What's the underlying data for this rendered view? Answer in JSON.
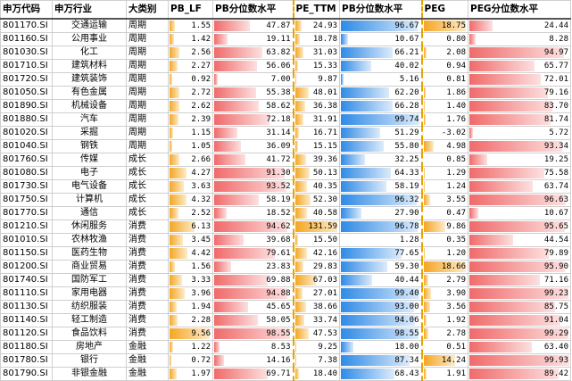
{
  "headers": [
    "申万代码",
    "申万行业",
    "大类别",
    "PB_LF",
    "PB分位数水平",
    "PE_TTM",
    "PB分位数水平",
    "PEG",
    "PEG分位数水平"
  ],
  "colors": {
    "orange": "#f5a623",
    "red": "#f06a6a",
    "blue": "#2f8ae6",
    "red_light": "#fde0e0",
    "blue_light": "#dcebfb",
    "orange_light": "#fdebc8"
  },
  "rows": [
    {
      "code": "801170.SI",
      "industry": "交通运输",
      "category": "周期",
      "pb": "1.55",
      "pb_pct": "47.87",
      "pe": "24.93",
      "pe_pct": "96.67",
      "peg": "18.75",
      "peg_pct": "24.44"
    },
    {
      "code": "801160.SI",
      "industry": "公用事业",
      "category": "周期",
      "pb": "1.42",
      "pb_pct": "19.11",
      "pe": "18.78",
      "pe_pct": "10.67",
      "peg": "0.80",
      "peg_pct": "8.28"
    },
    {
      "code": "801030.SI",
      "industry": "化工",
      "category": "周期",
      "pb": "2.56",
      "pb_pct": "63.82",
      "pe": "31.03",
      "pe_pct": "66.21",
      "peg": "2.08",
      "peg_pct": "94.97"
    },
    {
      "code": "801710.SI",
      "industry": "建筑材料",
      "category": "周期",
      "pb": "2.27",
      "pb_pct": "56.06",
      "pe": "15.33",
      "pe_pct": "40.02",
      "peg": "0.94",
      "peg_pct": "65.77"
    },
    {
      "code": "801720.SI",
      "industry": "建筑装饰",
      "category": "周期",
      "pb": "0.92",
      "pb_pct": "7.00",
      "pe": "9.87",
      "pe_pct": "5.16",
      "peg": "0.81",
      "peg_pct": "72.01"
    },
    {
      "code": "801050.SI",
      "industry": "有色金属",
      "category": "周期",
      "pb": "2.72",
      "pb_pct": "55.38",
      "pe": "48.01",
      "pe_pct": "62.20",
      "peg": "1.86",
      "peg_pct": "79.16"
    },
    {
      "code": "801890.SI",
      "industry": "机械设备",
      "category": "周期",
      "pb": "2.62",
      "pb_pct": "58.62",
      "pe": "36.38",
      "pe_pct": "66.28",
      "peg": "1.40",
      "peg_pct": "83.70"
    },
    {
      "code": "801880.SI",
      "industry": "汽车",
      "category": "周期",
      "pb": "2.39",
      "pb_pct": "72.18",
      "pe": "31.91",
      "pe_pct": "99.74",
      "peg": "1.76",
      "peg_pct": "81.74"
    },
    {
      "code": "801020.SI",
      "industry": "采掘",
      "category": "周期",
      "pb": "1.15",
      "pb_pct": "31.14",
      "pe": "16.71",
      "pe_pct": "51.29",
      "peg": "-3.02",
      "peg_pct": "5.72"
    },
    {
      "code": "801040.SI",
      "industry": "钢铁",
      "category": "周期",
      "pb": "1.05",
      "pb_pct": "36.09",
      "pe": "15.15",
      "pe_pct": "55.80",
      "peg": "4.98",
      "peg_pct": "93.34"
    },
    {
      "code": "801760.SI",
      "industry": "传媒",
      "category": "成长",
      "pb": "2.66",
      "pb_pct": "41.72",
      "pe": "39.36",
      "pe_pct": "32.25",
      "peg": "0.85",
      "peg_pct": "19.25"
    },
    {
      "code": "801080.SI",
      "industry": "电子",
      "category": "成长",
      "pb": "4.27",
      "pb_pct": "91.30",
      "pe": "50.13",
      "pe_pct": "64.33",
      "peg": "1.29",
      "peg_pct": "75.58"
    },
    {
      "code": "801730.SI",
      "industry": "电气设备",
      "category": "成长",
      "pb": "3.63",
      "pb_pct": "93.52",
      "pe": "40.35",
      "pe_pct": "58.19",
      "peg": "1.24",
      "peg_pct": "63.74"
    },
    {
      "code": "801750.SI",
      "industry": "计算机",
      "category": "成长",
      "pb": "4.32",
      "pb_pct": "58.19",
      "pe": "52.30",
      "pe_pct": "96.32",
      "peg": "3.55",
      "peg_pct": "96.63"
    },
    {
      "code": "801770.SI",
      "industry": "通信",
      "category": "成长",
      "pb": "2.52",
      "pb_pct": "18.52",
      "pe": "40.58",
      "pe_pct": "27.90",
      "peg": "0.47",
      "peg_pct": "10.67"
    },
    {
      "code": "801210.SI",
      "industry": "休闲服务",
      "category": "消费",
      "pb": "6.13",
      "pb_pct": "94.62",
      "pe": "131.59",
      "pe_pct": "96.78",
      "peg": "9.86",
      "peg_pct": "95.65"
    },
    {
      "code": "801010.SI",
      "industry": "农林牧渔",
      "category": "消费",
      "pb": "3.45",
      "pb_pct": "39.68",
      "pe": "15.50",
      "pe_pct": "1.28",
      "peg": "0.35",
      "peg_pct": "44.54"
    },
    {
      "code": "801150.SI",
      "industry": "医药生物",
      "category": "消费",
      "pb": "4.42",
      "pb_pct": "79.61",
      "pe": "42.16",
      "pe_pct": "77.65",
      "peg": "1.20",
      "peg_pct": "79.89"
    },
    {
      "code": "801200.SI",
      "industry": "商业贸易",
      "category": "消费",
      "pb": "1.56",
      "pb_pct": "23.83",
      "pe": "29.83",
      "pe_pct": "59.30",
      "peg": "18.66",
      "peg_pct": "95.90"
    },
    {
      "code": "801740.SI",
      "industry": "国防军工",
      "category": "消费",
      "pb": "3.33",
      "pb_pct": "69.88",
      "pe": "67.03",
      "pe_pct": "40.44",
      "peg": "2.79",
      "peg_pct": "71.16"
    },
    {
      "code": "801110.SI",
      "industry": "家用电器",
      "category": "消费",
      "pb": "3.96",
      "pb_pct": "94.88",
      "pe": "27.01",
      "pe_pct": "99.40",
      "peg": "3.90",
      "peg_pct": "99.23"
    },
    {
      "code": "801130.SI",
      "industry": "纺织服装",
      "category": "消费",
      "pb": "1.94",
      "pb_pct": "45.65",
      "pe": "38.66",
      "pe_pct": "93.00",
      "peg": "3.56",
      "peg_pct": "85.75"
    },
    {
      "code": "801140.SI",
      "industry": "轻工制造",
      "category": "消费",
      "pb": "2.28",
      "pb_pct": "58.05",
      "pe": "33.74",
      "pe_pct": "94.06",
      "peg": "1.92",
      "peg_pct": "91.04"
    },
    {
      "code": "801120.SI",
      "industry": "食品饮料",
      "category": "消费",
      "pb": "9.56",
      "pb_pct": "98.55",
      "pe": "47.53",
      "pe_pct": "98.55",
      "peg": "2.78",
      "peg_pct": "99.29"
    },
    {
      "code": "801180.SI",
      "industry": "房地产",
      "category": "金融",
      "pb": "1.22",
      "pb_pct": "8.53",
      "pe": "9.25",
      "pe_pct": "18.00",
      "peg": "0.51",
      "peg_pct": "63.40"
    },
    {
      "code": "801780.SI",
      "industry": "银行",
      "category": "金融",
      "pb": "0.72",
      "pb_pct": "14.16",
      "pe": "7.38",
      "pe_pct": "87.34",
      "peg": "14.24",
      "peg_pct": "99.93"
    },
    {
      "code": "801790.SI",
      "industry": "非银金融",
      "category": "金融",
      "pb": "1.97",
      "pb_pct": "69.71",
      "pe": "18.40",
      "pe_pct": "68.43",
      "peg": "1.91",
      "peg_pct": "89.42"
    }
  ]
}
